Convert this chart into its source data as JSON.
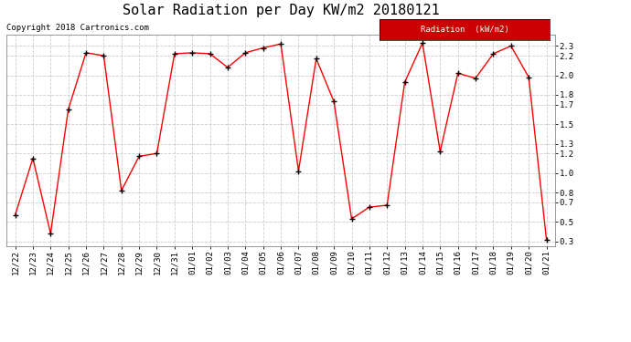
{
  "title": "Solar Radiation per Day KW/m2 20180121",
  "copyright": "Copyright 2018 Cartronics.com",
  "legend_label": "Radiation  (kW/m2)",
  "dates": [
    "12/22",
    "12/23",
    "12/24",
    "12/25",
    "12/26",
    "12/27",
    "12/28",
    "12/29",
    "12/30",
    "12/31",
    "01/01",
    "01/02",
    "01/03",
    "01/04",
    "01/05",
    "01/06",
    "01/07",
    "01/08",
    "01/09",
    "01/10",
    "01/11",
    "01/12",
    "01/13",
    "01/14",
    "01/15",
    "01/16",
    "01/17",
    "01/18",
    "01/19",
    "01/20",
    "01/21"
  ],
  "values": [
    0.57,
    1.15,
    0.38,
    1.65,
    2.23,
    2.2,
    0.82,
    1.17,
    1.2,
    2.22,
    2.23,
    2.22,
    2.08,
    2.23,
    2.28,
    2.32,
    1.02,
    2.17,
    1.73,
    0.53,
    0.65,
    0.67,
    1.93,
    2.33,
    1.22,
    2.02,
    1.97,
    2.22,
    2.3,
    1.98,
    0.32
  ],
  "line_color": "#ff0000",
  "marker_color": "#000000",
  "bg_color": "#ffffff",
  "grid_color": "#cccccc",
  "ylim_min": 0.25,
  "ylim_max": 2.42,
  "yticks": [
    0.3,
    0.5,
    0.7,
    0.8,
    1.0,
    1.2,
    1.3,
    1.5,
    1.7,
    1.8,
    2.0,
    2.2,
    2.3
  ],
  "legend_bg": "#cc0000",
  "legend_text_color": "#ffffff",
  "title_fontsize": 11,
  "tick_fontsize": 6.5,
  "copyright_fontsize": 6.5
}
